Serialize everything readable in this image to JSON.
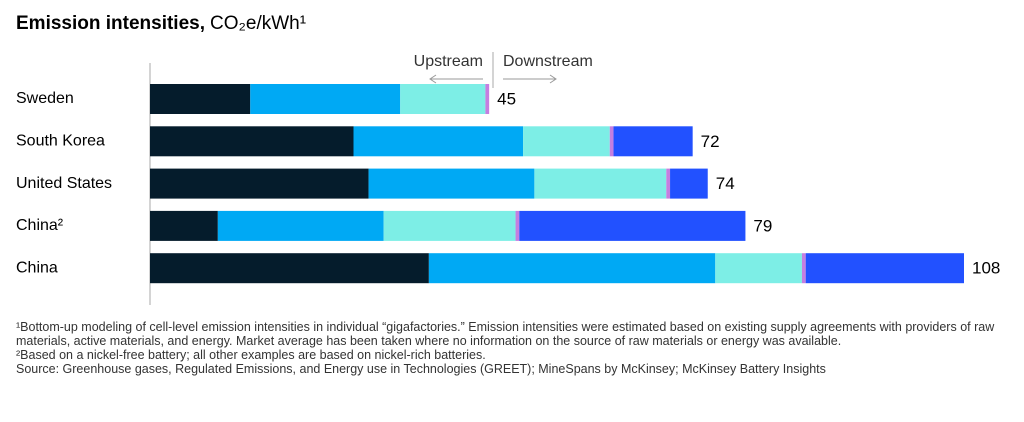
{
  "chart_data": {
    "type": "stacked-barh",
    "title": "Emission intensities,",
    "unit": "CO₂e/kWh¹",
    "annotations": {
      "left": "Upstream",
      "right": "Downstream"
    },
    "categories": [
      "Sweden",
      "South Korea",
      "United States",
      "China²",
      "China"
    ],
    "series": [
      {
        "color": "#051c2c",
        "values": [
          13.3,
          27,
          29,
          9,
          37
        ]
      },
      {
        "color": "#00a9f4",
        "values": [
          19.9,
          22.5,
          22,
          22,
          38
        ]
      },
      {
        "color": "#7deee6",
        "values": [
          11.3,
          11.5,
          17.5,
          17.5,
          11.5
        ]
      },
      {
        "color": "#c57ee0",
        "values": [
          0.5,
          0.5,
          0.5,
          0.5,
          0.5
        ]
      },
      {
        "color": "#2251ff",
        "values": [
          0,
          10.5,
          5,
          30,
          21
        ]
      }
    ],
    "totals": [
      45,
      72,
      74,
      79,
      108
    ],
    "xlim": [
      0,
      108
    ],
    "footnotes": [
      "¹Bottom-up modeling of cell-level emission intensities in individual “gigafactories.” Emission intensities were estimated based on existing supply agreements with providers of raw materials, active materials, and energy. Market average has been taken where no information on the source of raw materials or energy was available.",
      "²Based on a nickel-free battery; all other examples are based on nickel-rich batteries.",
      "Source: Greenhouse gases, Regulated Emissions, and Energy use in Technologies (GREET); MineSpans by McKinsey; McKinsey Battery Insights"
    ]
  }
}
